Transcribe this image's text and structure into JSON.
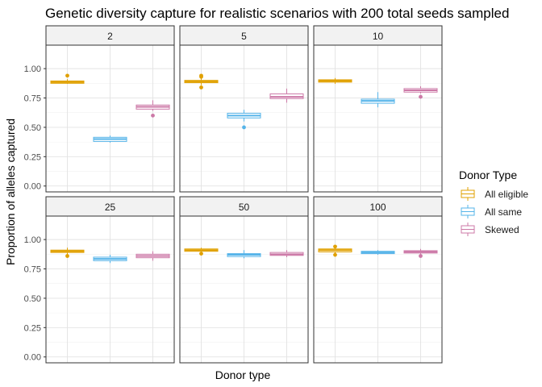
{
  "chart_data": {
    "type": "boxplot",
    "title": "Genetic diversity capture for realistic scenarios with 200 total seeds sampled",
    "xlabel": "Donor type",
    "ylabel": "Proportion of alleles captured",
    "ylim": [
      -0.05,
      1.2
    ],
    "yticks": [
      0.0,
      0.25,
      0.5,
      0.75,
      1.0
    ],
    "ytick_labels": [
      "0.00",
      "0.25",
      "0.50",
      "0.75",
      "1.00"
    ],
    "facet_layout": "2x3",
    "legend": {
      "title": "Donor Type",
      "position": "right"
    },
    "series": [
      {
        "name": "All eligible",
        "color": "#E0A000"
      },
      {
        "name": "All same",
        "color": "#56B4E9"
      },
      {
        "name": "Skewed",
        "color": "#CC79A7"
      }
    ],
    "panels": [
      {
        "label": "2",
        "boxes": [
          {
            "series": "All eligible",
            "q1": 0.875,
            "median": 0.885,
            "q3": 0.895,
            "lo": 0.87,
            "hi": 0.91,
            "outliers": [
              0.94
            ]
          },
          {
            "series": "All same",
            "q1": 0.38,
            "median": 0.4,
            "q3": 0.415,
            "lo": 0.37,
            "hi": 0.43,
            "outliers": []
          },
          {
            "series": "Skewed",
            "q1": 0.655,
            "median": 0.675,
            "q3": 0.69,
            "lo": 0.64,
            "hi": 0.73,
            "outliers": [
              0.6
            ]
          }
        ]
      },
      {
        "label": "5",
        "boxes": [
          {
            "series": "All eligible",
            "q1": 0.88,
            "median": 0.89,
            "q3": 0.9,
            "lo": 0.86,
            "hi": 0.92,
            "outliers": [
              0.84,
              0.93,
              0.94
            ]
          },
          {
            "series": "All same",
            "q1": 0.58,
            "median": 0.6,
            "q3": 0.62,
            "lo": 0.55,
            "hi": 0.65,
            "outliers": [
              0.5
            ]
          },
          {
            "series": "Skewed",
            "q1": 0.745,
            "median": 0.76,
            "q3": 0.785,
            "lo": 0.71,
            "hi": 0.83,
            "outliers": []
          }
        ]
      },
      {
        "label": "10",
        "boxes": [
          {
            "series": "All eligible",
            "q1": 0.885,
            "median": 0.895,
            "q3": 0.905,
            "lo": 0.87,
            "hi": 0.92,
            "outliers": []
          },
          {
            "series": "All same",
            "q1": 0.705,
            "median": 0.725,
            "q3": 0.74,
            "lo": 0.67,
            "hi": 0.8,
            "outliers": []
          },
          {
            "series": "Skewed",
            "q1": 0.8,
            "median": 0.815,
            "q3": 0.83,
            "lo": 0.79,
            "hi": 0.85,
            "outliers": [
              0.76
            ]
          }
        ]
      },
      {
        "label": "25",
        "boxes": [
          {
            "series": "All eligible",
            "q1": 0.89,
            "median": 0.9,
            "q3": 0.91,
            "lo": 0.87,
            "hi": 0.93,
            "outliers": [
              0.86
            ]
          },
          {
            "series": "All same",
            "q1": 0.82,
            "median": 0.835,
            "q3": 0.85,
            "lo": 0.8,
            "hi": 0.87,
            "outliers": []
          },
          {
            "series": "Skewed",
            "q1": 0.845,
            "median": 0.86,
            "q3": 0.875,
            "lo": 0.82,
            "hi": 0.9,
            "outliers": []
          }
        ]
      },
      {
        "label": "50",
        "boxes": [
          {
            "series": "All eligible",
            "q1": 0.9,
            "median": 0.91,
            "q3": 0.92,
            "lo": 0.89,
            "hi": 0.93,
            "outliers": [
              0.88
            ]
          },
          {
            "series": "All same",
            "q1": 0.855,
            "median": 0.87,
            "q3": 0.88,
            "lo": 0.84,
            "hi": 0.91,
            "outliers": []
          },
          {
            "series": "Skewed",
            "q1": 0.865,
            "median": 0.875,
            "q3": 0.89,
            "lo": 0.85,
            "hi": 0.91,
            "outliers": []
          }
        ]
      },
      {
        "label": "100",
        "boxes": [
          {
            "series": "All eligible",
            "q1": 0.895,
            "median": 0.91,
            "q3": 0.92,
            "lo": 0.88,
            "hi": 0.93,
            "outliers": [
              0.87,
              0.94
            ]
          },
          {
            "series": "All same",
            "q1": 0.88,
            "median": 0.89,
            "q3": 0.9,
            "lo": 0.87,
            "hi": 0.91,
            "outliers": []
          },
          {
            "series": "Skewed",
            "q1": 0.885,
            "median": 0.895,
            "q3": 0.905,
            "lo": 0.87,
            "hi": 0.92,
            "outliers": [
              0.86
            ]
          }
        ]
      }
    ]
  }
}
